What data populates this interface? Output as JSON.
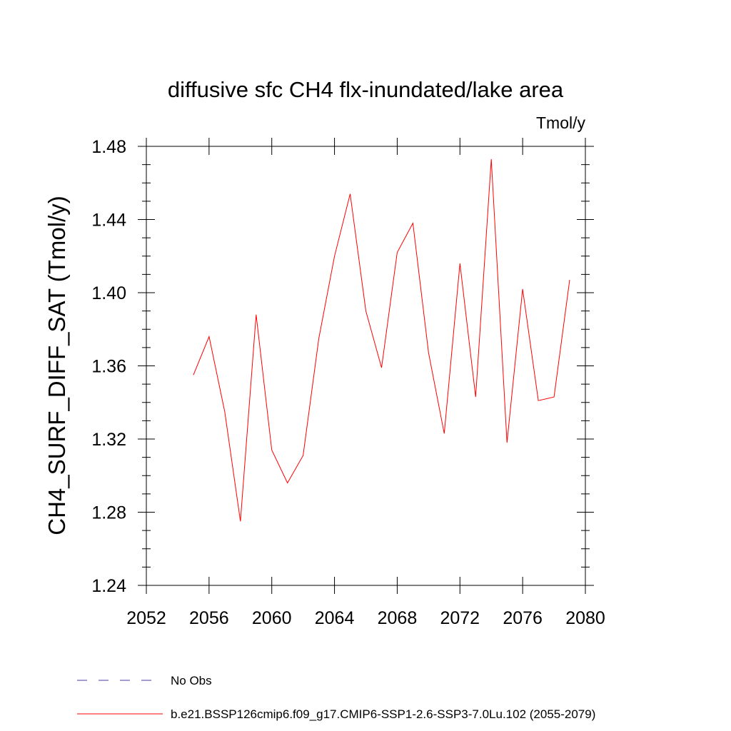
{
  "chart_data": {
    "type": "line",
    "title": "diffusive sfc CH4 flx-inundated/lake area",
    "units": "Tmol/y",
    "ylabel": "CH4_SURF_DIFF_SAT  (Tmol/y)",
    "xlabel": "",
    "xlim": [
      2052,
      2080
    ],
    "ylim": [
      1.24,
      1.48
    ],
    "xticks": [
      "2052",
      "2056",
      "2060",
      "2064",
      "2068",
      "2072",
      "2076",
      "2080"
    ],
    "yticks": [
      "1.24",
      "1.28",
      "1.32",
      "1.36",
      "1.40",
      "1.44",
      "1.48"
    ],
    "grid": false,
    "series": [
      {
        "name": "b.e21.BSSP126cmip6.f09_g17.CMIP6-SSP1-2.6-SSP3-7.0Lu.102 (2055-2079)",
        "color": "#ff0000",
        "x": [
          2055,
          2056,
          2057,
          2058,
          2059,
          2060,
          2061,
          2062,
          2063,
          2064,
          2065,
          2066,
          2067,
          2068,
          2069,
          2070,
          2071,
          2072,
          2073,
          2074,
          2075,
          2076,
          2077,
          2078,
          2079
        ],
        "values": [
          1.355,
          1.376,
          1.335,
          1.275,
          1.388,
          1.314,
          1.296,
          1.311,
          1.375,
          1.42,
          1.454,
          1.39,
          1.359,
          1.422,
          1.438,
          1.367,
          1.323,
          1.416,
          1.343,
          1.473,
          1.318,
          1.402,
          1.341,
          1.343,
          1.407
        ]
      }
    ],
    "legend": [
      {
        "label": "No Obs",
        "color": "#4a3aa8",
        "style": "dashed"
      },
      {
        "label": "b.e21.BSSP126cmip6.f09_g17.CMIP6-SSP1-2.6-SSP3-7.0Lu.102 (2055-2079)",
        "color": "#ff0000",
        "style": "solid"
      }
    ]
  }
}
